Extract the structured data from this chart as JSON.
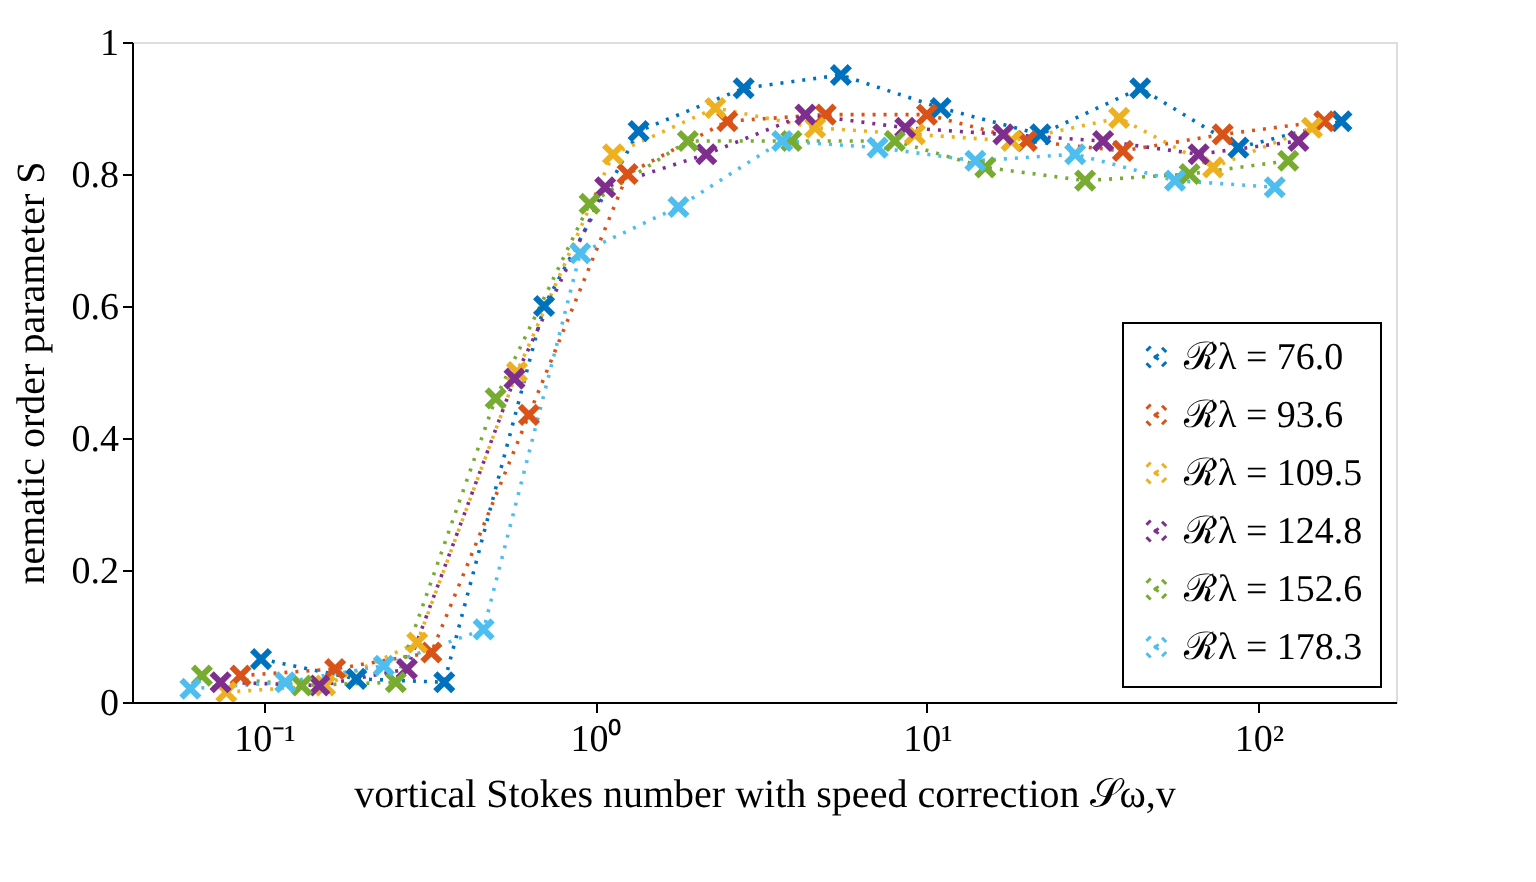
{
  "chart_data": {
    "type": "line",
    "xlabel": "vortical Stokes number with speed correction 𝒮ω,v",
    "ylabel": "nematic order parameter S",
    "log": "x",
    "xlim": [
      0.04,
      260
    ],
    "ylim": [
      0,
      1
    ],
    "xticks": [
      {
        "value": 0.1,
        "label": "10⁻¹"
      },
      {
        "value": 1,
        "label": "10⁰"
      },
      {
        "value": 10,
        "label": "10¹"
      },
      {
        "value": 100,
        "label": "10²"
      }
    ],
    "yticks": [
      0,
      0.2,
      0.4,
      0.6,
      0.8,
      1
    ],
    "grid": false,
    "legend": "bottom right",
    "marker": "cross",
    "line_style": "dotted",
    "series": [
      {
        "name": "ℛλ = 76.0",
        "color": "#0072bd",
        "x": [
          0.098,
          0.19,
          0.35,
          0.7,
          1.35,
          2.8,
          5.5,
          11,
          22,
          44,
          87,
          178
        ],
        "values": [
          0.065,
          0.035,
          0.03,
          0.6,
          0.865,
          0.93,
          0.95,
          0.9,
          0.86,
          0.93,
          0.84,
          0.88
        ]
      },
      {
        "name": "ℛλ = 93.6",
        "color": "#d95319",
        "x": [
          0.085,
          0.164,
          0.32,
          0.63,
          1.25,
          2.5,
          4.95,
          10,
          20,
          39,
          78,
          158
        ],
        "values": [
          0.04,
          0.05,
          0.075,
          0.435,
          0.8,
          0.88,
          0.89,
          0.89,
          0.85,
          0.835,
          0.86,
          0.88
        ]
      },
      {
        "name": "ℛλ = 109.5",
        "color": "#edb120",
        "x": [
          0.077,
          0.153,
          0.29,
          0.58,
          1.13,
          2.3,
          4.6,
          9.2,
          18,
          38,
          73,
          145
        ],
        "values": [
          0.015,
          0.025,
          0.09,
          0.5,
          0.83,
          0.9,
          0.87,
          0.86,
          0.85,
          0.885,
          0.81,
          0.87
        ]
      },
      {
        "name": "ℛλ = 124.8",
        "color": "#7e2f8e",
        "x": [
          0.074,
          0.147,
          0.27,
          0.57,
          1.07,
          2.16,
          4.3,
          8.6,
          17,
          34,
          66,
          132
        ],
        "values": [
          0.03,
          0.025,
          0.05,
          0.49,
          0.78,
          0.83,
          0.89,
          0.87,
          0.86,
          0.85,
          0.83,
          0.85
        ]
      },
      {
        "name": "ℛλ = 152.6",
        "color": "#77ac30",
        "x": [
          0.065,
          0.13,
          0.25,
          0.5,
          0.96,
          1.9,
          3.9,
          8.0,
          15,
          30,
          62,
          123
        ],
        "values": [
          0.04,
          0.025,
          0.03,
          0.46,
          0.755,
          0.85,
          0.85,
          0.85,
          0.81,
          0.79,
          0.8,
          0.82
        ]
      },
      {
        "name": "ℛλ = 178.3",
        "color": "#4dbeee",
        "x": [
          0.06,
          0.116,
          0.23,
          0.46,
          0.9,
          1.78,
          3.66,
          7.1,
          14,
          28,
          56,
          112
        ],
        "values": [
          0.02,
          0.03,
          0.055,
          0.11,
          0.68,
          0.75,
          0.85,
          0.84,
          0.82,
          0.83,
          0.79,
          0.78
        ]
      }
    ]
  }
}
